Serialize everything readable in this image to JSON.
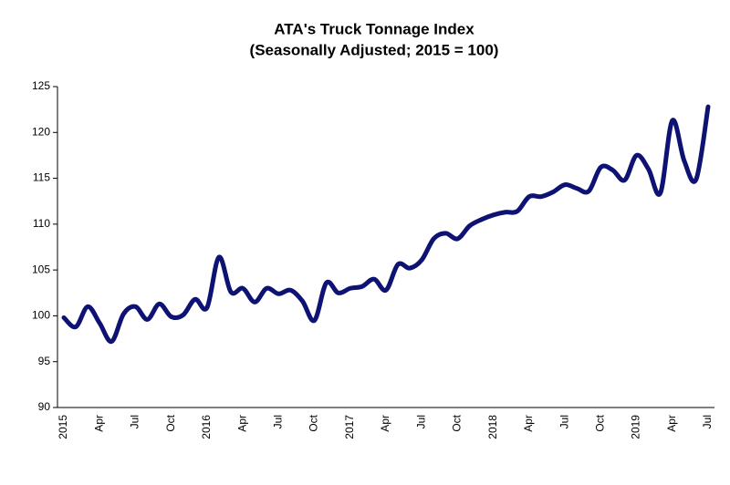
{
  "chart_data": {
    "type": "line",
    "title": "ATA's Truck Tonnage Index",
    "subtitle": "(Seasonally Adjusted; 2015 = 100)",
    "categories": [
      "2015",
      null,
      null,
      "Apr",
      null,
      null,
      "Jul",
      null,
      null,
      "Oct",
      null,
      null,
      "2016",
      null,
      null,
      "Apr",
      null,
      null,
      "Jul",
      null,
      null,
      "Oct",
      null,
      null,
      "2017",
      null,
      null,
      "Apr",
      null,
      null,
      "Jul",
      null,
      null,
      "Oct",
      null,
      null,
      "2018",
      null,
      null,
      "Apr",
      null,
      null,
      "Jul",
      null,
      null,
      "Oct",
      null,
      null,
      "2019",
      null,
      null,
      "Apr",
      null,
      null,
      "Jul"
    ],
    "series": [
      {
        "color": "#0d1273",
        "values": [
          99.8,
          98.8,
          101.0,
          99.2,
          97.2,
          100.2,
          101.0,
          99.6,
          101.3,
          99.9,
          100.1,
          101.8,
          100.9,
          106.4,
          102.6,
          103.0,
          101.5,
          103.0,
          102.4,
          102.8,
          101.6,
          99.5,
          103.6,
          102.5,
          103.0,
          103.2,
          104.0,
          102.8,
          105.6,
          105.2,
          106.1,
          108.4,
          109.0,
          108.4,
          109.8,
          110.5,
          111.0,
          111.3,
          111.4,
          113.0,
          113.0,
          113.5,
          114.3,
          113.9,
          113.6,
          116.2,
          115.9,
          114.8,
          117.5,
          116.0,
          113.4,
          121.3,
          116.9,
          114.9,
          122.8
        ]
      }
    ],
    "ylim": [
      90,
      125
    ],
    "yticks": [
      90,
      95,
      100,
      105,
      110,
      115,
      120,
      125
    ],
    "grid": false
  }
}
